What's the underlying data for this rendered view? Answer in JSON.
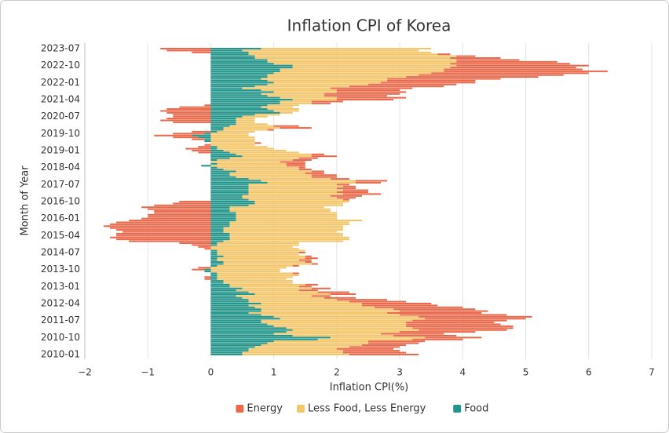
{
  "chart_data": {
    "type": "stacked-barh",
    "title": "Inflation CPI of Korea",
    "x_label": "Inflation CPI(%)",
    "y_label": "Month of Year",
    "categories": [
      "2010-01",
      null,
      null,
      null,
      null,
      null,
      null,
      null,
      null,
      "2010-10",
      null,
      null,
      null,
      null,
      null,
      null,
      null,
      null,
      "2011-07",
      null,
      null,
      null,
      null,
      null,
      null,
      null,
      null,
      "2012-04",
      null,
      null,
      null,
      null,
      null,
      null,
      null,
      null,
      "2013-01",
      null,
      null,
      null,
      null,
      null,
      null,
      null,
      null,
      "2013-10",
      null,
      null,
      null,
      null,
      null,
      null,
      null,
      null,
      "2014-07",
      null,
      null,
      null,
      null,
      null,
      null,
      null,
      null,
      "2015-04",
      null,
      null,
      null,
      null,
      null,
      null,
      null,
      null,
      "2016-01",
      null,
      null,
      null,
      null,
      null,
      null,
      null,
      null,
      "2016-10",
      null,
      null,
      null,
      null,
      null,
      null,
      null,
      null,
      "2017-07",
      null,
      null,
      null,
      null,
      null,
      null,
      null,
      null,
      "2018-04",
      null,
      null,
      null,
      null,
      null,
      null,
      null,
      null,
      "2019-01",
      null,
      null,
      null,
      null,
      null,
      null,
      null,
      null,
      "2019-10",
      null,
      null,
      null,
      null,
      null,
      null,
      null,
      null,
      "2020-07",
      null,
      null,
      null,
      null,
      null,
      null,
      null,
      null,
      "2021-04",
      null,
      null,
      null,
      null,
      null,
      null,
      null,
      null,
      "2022-01",
      null,
      null,
      null,
      null,
      null,
      null,
      null,
      null,
      "2022-10",
      null,
      null,
      null,
      null,
      null,
      null,
      null,
      null,
      "2023-07"
    ],
    "series": [
      {
        "name": "Energy",
        "color": "#e8694b",
        "values": [
          1.1,
          1.0,
          0.9,
          0.9,
          0.8,
          0.7,
          0.8,
          0.9,
          0.8,
          0.9,
          1.0,
          1.0,
          1.2,
          1.4,
          1.6,
          1.7,
          1.5,
          1.4,
          1.5,
          1.6,
          1.8,
          1.7,
          1.5,
          1.4,
          1.3,
          1.4,
          1.2,
          1.1,
          0.9,
          0.8,
          0.5,
          0.3,
          0.4,
          0.5,
          0.3,
          0.3,
          0.2,
          0.2,
          0.0,
          0.0,
          -0.1,
          -0.1,
          0.0,
          0.1,
          0.0,
          -0.2,
          -0.2,
          0.1,
          0.1,
          0.1,
          0.2,
          0.2,
          0.1,
          0.0,
          0.1,
          0.0,
          -0.1,
          -0.2,
          -0.3,
          -0.5,
          -1.3,
          -1.5,
          -1.6,
          -1.5,
          -1.5,
          -1.4,
          -1.5,
          -1.6,
          -1.7,
          -1.6,
          -1.5,
          -1.3,
          -1.1,
          -1.0,
          -1.0,
          -0.9,
          -0.9,
          -1.0,
          -1.1,
          -0.9,
          -0.6,
          -0.5,
          0.1,
          0.3,
          0.5,
          0.6,
          0.5,
          0.4,
          0.3,
          0.2,
          0.2,
          0.4,
          0.5,
          0.3,
          0.4,
          0.4,
          0.3,
          0.2,
          0.2,
          0.1,
          0.3,
          0.3,
          0.4,
          0.3,
          0.3,
          0.4,
          0.2,
          -0.2,
          -0.3,
          -0.4,
          -0.2,
          -0.1,
          0.1,
          0.0,
          -0.2,
          -0.4,
          -0.6,
          -0.5,
          -0.3,
          0.1,
          0.5,
          0.4,
          0.0,
          -0.6,
          -0.8,
          -0.7,
          -0.6,
          -0.6,
          -0.7,
          -0.8,
          -0.7,
          -0.5,
          -0.1,
          0.3,
          0.5,
          0.9,
          1.1,
          1.0,
          1.2,
          1.1,
          1.0,
          1.3,
          1.5,
          1.4,
          1.5,
          1.4,
          1.8,
          2.1,
          2.3,
          2.5,
          2.6,
          2.2,
          2.0,
          2.1,
          1.9,
          1.6,
          1.0,
          0.8,
          0.3,
          0.2,
          -0.3,
          -0.7,
          -0.8
        ]
      },
      {
        "name": "Less Food, Less Energy",
        "color": "#f3c66b",
        "values": [
          1.7,
          1.6,
          1.5,
          1.4,
          1.5,
          1.6,
          1.6,
          1.5,
          1.5,
          1.5,
          1.6,
          1.7,
          1.8,
          2.0,
          2.0,
          2.1,
          2.2,
          2.3,
          2.4,
          2.3,
          2.3,
          2.2,
          2.2,
          2.2,
          2.1,
          1.9,
          1.8,
          1.6,
          1.6,
          1.4,
          1.3,
          1.2,
          1.2,
          1.1,
          1.0,
          1.1,
          1.1,
          1.2,
          1.1,
          1.1,
          1.1,
          1.2,
          1.3,
          1.2,
          1.1,
          1.1,
          1.2,
          1.2,
          1.4,
          1.3,
          1.3,
          1.4,
          1.3,
          1.3,
          1.3,
          1.4,
          1.4,
          1.3,
          1.3,
          1.3,
          1.9,
          1.9,
          1.9,
          1.8,
          1.8,
          1.8,
          1.9,
          1.9,
          1.8,
          1.9,
          1.9,
          2.0,
          1.6,
          1.6,
          1.6,
          1.6,
          1.6,
          1.6,
          1.5,
          1.5,
          1.4,
          1.5,
          1.5,
          1.5,
          1.4,
          1.5,
          1.4,
          1.5,
          1.4,
          1.5,
          1.4,
          1.4,
          1.5,
          1.3,
          1.2,
          1.3,
          1.2,
          1.2,
          1.2,
          1.3,
          1.2,
          1.1,
          1.1,
          1.2,
          1.1,
          1.1,
          1.2,
          1.1,
          1.0,
          0.9,
          0.8,
          0.7,
          0.7,
          0.7,
          0.7,
          0.7,
          0.6,
          0.6,
          0.6,
          0.7,
          0.9,
          0.7,
          0.5,
          0.3,
          0.3,
          0.3,
          0.4,
          0.4,
          0.2,
          0.4,
          0.5,
          0.5,
          0.5,
          0.5,
          0.5,
          0.7,
          0.9,
          0.9,
          1.0,
          1.0,
          1.2,
          1.4,
          1.5,
          1.6,
          1.7,
          1.9,
          2.0,
          2.2,
          2.4,
          2.5,
          2.6,
          2.6,
          2.5,
          2.6,
          2.8,
          3.0,
          3.0,
          3.1,
          3.2,
          3.0,
          2.9,
          2.8,
          2.7
        ]
      },
      {
        "name": "Food",
        "color": "#23958a",
        "values": [
          0.5,
          0.5,
          0.6,
          0.6,
          0.7,
          0.8,
          0.9,
          1.0,
          1.7,
          1.9,
          1.3,
          1.0,
          1.2,
          1.3,
          1.2,
          1.0,
          0.9,
          0.8,
          0.8,
          1.1,
          1.0,
          0.8,
          0.6,
          0.8,
          0.8,
          0.7,
          0.6,
          0.8,
          0.6,
          0.6,
          0.5,
          0.4,
          0.7,
          0.6,
          0.4,
          0.5,
          0.3,
          0.3,
          0.2,
          0.2,
          0.1,
          0.1,
          0.1,
          0.1,
          -0.1,
          -0.1,
          0.0,
          0.1,
          0.2,
          0.2,
          0.1,
          0.1,
          0.2,
          0.1,
          0.1,
          0.1,
          0.0,
          0.0,
          0.1,
          0.1,
          0.2,
          0.3,
          0.3,
          0.3,
          0.3,
          0.2,
          0.2,
          0.2,
          0.3,
          0.3,
          0.3,
          0.4,
          0.4,
          0.4,
          0.4,
          0.4,
          0.3,
          0.3,
          0.3,
          0.6,
          0.7,
          0.7,
          0.6,
          0.5,
          0.5,
          0.6,
          0.6,
          0.6,
          0.6,
          0.6,
          0.6,
          0.9,
          0.8,
          0.6,
          0.4,
          0.3,
          0.3,
          0.4,
          0.2,
          0.1,
          -0.15,
          0.1,
          0.0,
          0.1,
          0.3,
          0.5,
          0.4,
          0.3,
          0.2,
          0.1,
          0.1,
          0.0,
          0.0,
          -0.1,
          -0.1,
          -0.2,
          -0.3,
          -0.1,
          0.1,
          0.2,
          0.2,
          0.3,
          0.4,
          0.4,
          0.4,
          0.4,
          0.5,
          0.7,
          1.1,
          1.0,
          0.9,
          0.8,
          0.9,
          1.1,
          1.1,
          1.3,
          1.1,
          0.9,
          0.8,
          1.0,
          0.8,
          0.5,
          0.7,
          0.9,
          1.0,
          0.9,
          0.8,
          0.9,
          0.9,
          1.0,
          1.1,
          1.1,
          1.3,
          1.3,
          1.0,
          0.9,
          0.9,
          0.7,
          0.7,
          0.6,
          0.6,
          0.5,
          0.8
        ]
      }
    ],
    "xlim": [
      -2,
      7
    ],
    "xticks": [
      {
        "value": -2,
        "label": "−2"
      },
      {
        "value": -1,
        "label": "−1"
      },
      0,
      1,
      2,
      3,
      4,
      5,
      6,
      7
    ],
    "grid": true,
    "legend": "bottom"
  }
}
